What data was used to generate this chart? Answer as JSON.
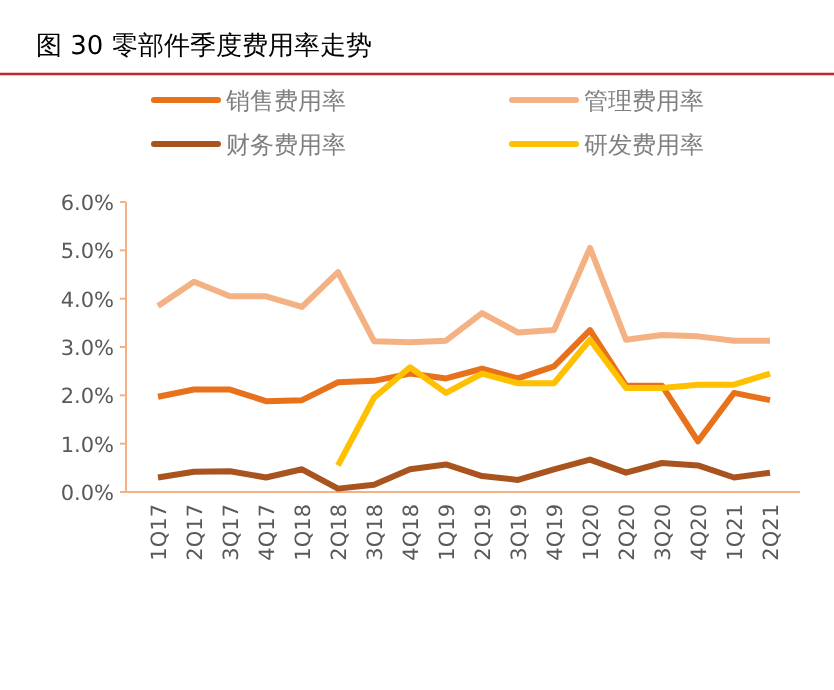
{
  "chart_data": {
    "type": "line",
    "title": "图 30 零部件季度费用率走势",
    "categories": [
      "1Q17",
      "2Q17",
      "3Q17",
      "4Q17",
      "1Q18",
      "2Q18",
      "3Q18",
      "4Q18",
      "1Q19",
      "2Q19",
      "3Q19",
      "4Q19",
      "1Q20",
      "2Q20",
      "3Q20",
      "4Q20",
      "1Q21",
      "2Q21"
    ],
    "series": [
      {
        "name": "销售费用率",
        "color": "#e8711c",
        "values": [
          1.97,
          2.12,
          2.12,
          1.88,
          1.9,
          2.27,
          2.3,
          2.45,
          2.35,
          2.55,
          2.35,
          2.6,
          3.35,
          2.2,
          2.2,
          1.05,
          2.05,
          1.9
        ]
      },
      {
        "name": "管理费用率",
        "color": "#f4b183",
        "values": [
          3.85,
          4.35,
          4.05,
          4.05,
          3.83,
          4.55,
          3.12,
          3.1,
          3.13,
          3.7,
          3.3,
          3.35,
          5.05,
          3.15,
          3.25,
          3.22,
          3.13,
          3.13
        ]
      },
      {
        "name": "财务费用率",
        "color": "#a9531e",
        "values": [
          0.3,
          0.42,
          0.43,
          0.3,
          0.47,
          0.07,
          0.15,
          0.47,
          0.57,
          0.33,
          0.25,
          0.47,
          0.67,
          0.4,
          0.6,
          0.55,
          0.3,
          0.4
        ]
      },
      {
        "name": "研发费用率",
        "color": "#ffc000",
        "values": [
          null,
          null,
          null,
          null,
          null,
          0.55,
          1.95,
          2.58,
          2.05,
          2.45,
          2.25,
          2.25,
          3.15,
          2.15,
          2.15,
          2.22,
          2.22,
          2.45
        ]
      }
    ],
    "ylim": [
      0,
      6
    ],
    "yticks": [
      {
        "value": 0,
        "label": "0.0%"
      },
      {
        "value": 1,
        "label": "1.0%"
      },
      {
        "value": 2,
        "label": "2.0%"
      },
      {
        "value": 3,
        "label": "3.0%"
      },
      {
        "value": 4,
        "label": "4.0%"
      },
      {
        "value": 5,
        "label": "5.0%"
      },
      {
        "value": 6,
        "label": "6.0%"
      }
    ],
    "legend": "top",
    "grid": false,
    "marker": "none",
    "line_style": "solid"
  }
}
